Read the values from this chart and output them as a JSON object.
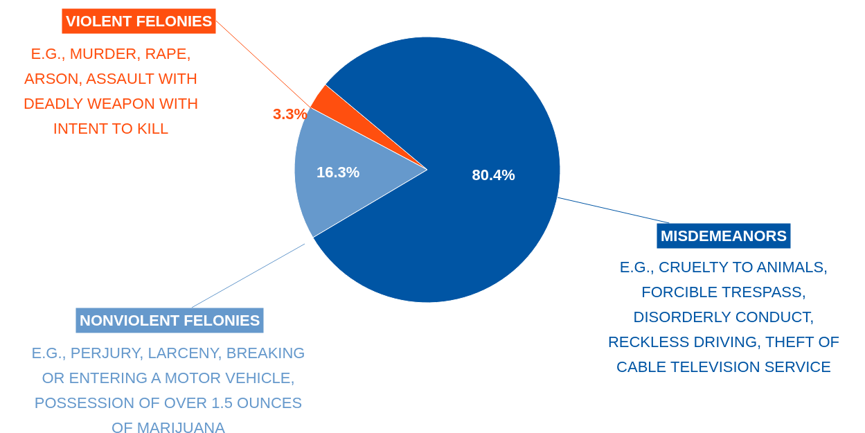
{
  "chart_data": {
    "type": "pie",
    "categories": [
      "VIOLENT FELONIES",
      "NONVIOLENT FELONIES",
      "MISDEMEANORS"
    ],
    "values": [
      3.3,
      16.3,
      80.4
    ],
    "colors": [
      "#ff4f0f",
      "#6699cc",
      "#0055a4"
    ],
    "value_labels": [
      "3.3%",
      "16.3%",
      "80.4%"
    ],
    "annotations": [
      "E.G., MURDER, RAPE, ARSON, ASSAULT WITH DEADLY WEAPON WITH INTENT TO KILL",
      "E.G., PERJURY, LARCENY, BREAKING OR ENTERING A MOTOR VEHICLE, POSSESSION OF OVER 1.5 OUNCES OF MARIJUANA",
      "E.G., CRUELTY TO ANIMALS, FORCIBLE TRESPASS, DISORDERLY CONDUCT, RECKLESS DRIVING, THEFT OF CABLE TELEVISION SERVICE"
    ],
    "legend": false
  }
}
